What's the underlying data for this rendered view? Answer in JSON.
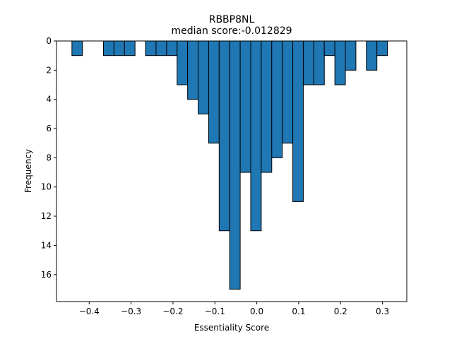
{
  "chart_data": {
    "type": "bar",
    "orientation": "inverted-y histogram",
    "title": "RBBP8NL",
    "subtitle": "median score:-0.012829",
    "xlabel": "Essentiality Score",
    "ylabel": "Frequency",
    "xlim": [
      -0.478,
      0.358
    ],
    "ylim": [
      0,
      17.85
    ],
    "y_inverted": true,
    "grid": false,
    "bar_color": "#1f77b4",
    "edge_color": "#000000",
    "bin_width": 0.0251,
    "bins": [
      {
        "x0": -0.4412,
        "count": 1
      },
      {
        "x0": -0.4161,
        "count": 0
      },
      {
        "x0": -0.391,
        "count": 0
      },
      {
        "x0": -0.3659,
        "count": 1
      },
      {
        "x0": -0.3408,
        "count": 1
      },
      {
        "x0": -0.3157,
        "count": 1
      },
      {
        "x0": -0.2906,
        "count": 0
      },
      {
        "x0": -0.2655,
        "count": 1
      },
      {
        "x0": -0.2404,
        "count": 1
      },
      {
        "x0": -0.2153,
        "count": 1
      },
      {
        "x0": -0.1902,
        "count": 3
      },
      {
        "x0": -0.1651,
        "count": 4
      },
      {
        "x0": -0.14,
        "count": 5
      },
      {
        "x0": -0.1149,
        "count": 7
      },
      {
        "x0": -0.0898,
        "count": 13
      },
      {
        "x0": -0.0647,
        "count": 17
      },
      {
        "x0": -0.0396,
        "count": 9
      },
      {
        "x0": -0.0145,
        "count": 13
      },
      {
        "x0": 0.0106,
        "count": 9
      },
      {
        "x0": 0.0357,
        "count": 8
      },
      {
        "x0": 0.0608,
        "count": 7
      },
      {
        "x0": 0.0859,
        "count": 11
      },
      {
        "x0": 0.111,
        "count": 3
      },
      {
        "x0": 0.1361,
        "count": 3
      },
      {
        "x0": 0.1612,
        "count": 1
      },
      {
        "x0": 0.1863,
        "count": 3
      },
      {
        "x0": 0.2114,
        "count": 2
      },
      {
        "x0": 0.2365,
        "count": 0
      },
      {
        "x0": 0.2616,
        "count": 2
      },
      {
        "x0": 0.2867,
        "count": 1
      }
    ],
    "x_ticks": [
      {
        "value": -0.4,
        "label": "−0.4"
      },
      {
        "value": -0.3,
        "label": "−0.3"
      },
      {
        "value": -0.2,
        "label": "−0.2"
      },
      {
        "value": -0.1,
        "label": "−0.1"
      },
      {
        "value": 0.0,
        "label": "0.0"
      },
      {
        "value": 0.1,
        "label": "0.1"
      },
      {
        "value": 0.2,
        "label": "0.2"
      },
      {
        "value": 0.3,
        "label": "0.3"
      }
    ],
    "y_ticks": [
      {
        "value": 0,
        "label": "0"
      },
      {
        "value": 2,
        "label": "2"
      },
      {
        "value": 4,
        "label": "4"
      },
      {
        "value": 6,
        "label": "6"
      },
      {
        "value": 8,
        "label": "8"
      },
      {
        "value": 10,
        "label": "10"
      },
      {
        "value": 12,
        "label": "12"
      },
      {
        "value": 14,
        "label": "14"
      },
      {
        "value": 16,
        "label": "16"
      }
    ]
  }
}
